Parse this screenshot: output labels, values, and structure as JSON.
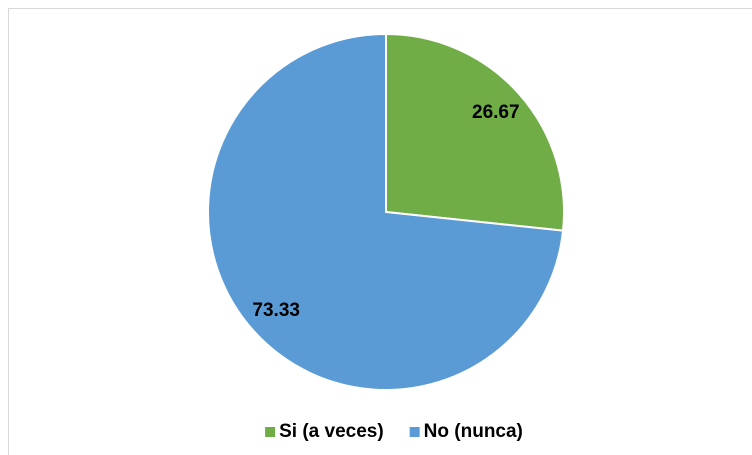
{
  "chart_data": {
    "type": "pie",
    "categories": [
      "Si (a veces)",
      "No (nunca)"
    ],
    "values": [
      26.67,
      73.33
    ],
    "colors": [
      "#70ad47",
      "#5b9bd5"
    ],
    "legend": "bottom"
  }
}
